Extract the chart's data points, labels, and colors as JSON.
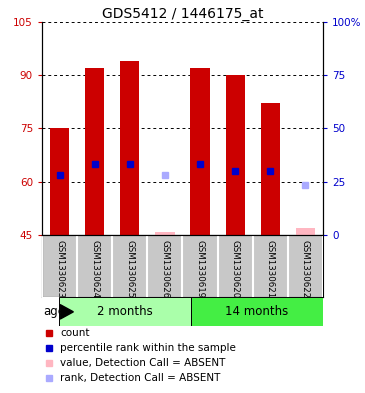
{
  "title": "GDS5412 / 1446175_at",
  "samples": [
    "GSM1330623",
    "GSM1330624",
    "GSM1330625",
    "GSM1330626",
    "GSM1330619",
    "GSM1330620",
    "GSM1330621",
    "GSM1330622"
  ],
  "groups": [
    {
      "label": "2 months",
      "indices": [
        0,
        1,
        2,
        3
      ],
      "color": "#AAFFAA"
    },
    {
      "label": "14 months",
      "indices": [
        4,
        5,
        6,
        7
      ],
      "color": "#44EE44"
    }
  ],
  "absent": [
    3,
    7
  ],
  "bar_bottom": 45,
  "ylim_left": [
    45,
    105
  ],
  "ylim_right": [
    0,
    100
  ],
  "yticks_left": [
    45,
    60,
    75,
    90,
    105
  ],
  "yticks_right": [
    0,
    25,
    50,
    75,
    100
  ],
  "ytick_labels_right": [
    "0",
    "25",
    "50",
    "75",
    "100%"
  ],
  "count_values": [
    75,
    92,
    94,
    46,
    92,
    90,
    82,
    47
  ],
  "rank_values": [
    62,
    65,
    65,
    62,
    65,
    63,
    63,
    59
  ],
  "bar_color_present": "#CC0000",
  "bar_color_absent": "#FFB6C1",
  "rank_color_present": "#0000CC",
  "rank_color_absent": "#AAAAFF",
  "bar_width": 0.55,
  "rank_marker_size": 4,
  "background_sample": "#C8C8C8",
  "left_tick_color": "#CC0000",
  "right_tick_color": "#0000CC",
  "legend_items": [
    {
      "color": "#CC0000",
      "label": "count"
    },
    {
      "color": "#0000CC",
      "label": "percentile rank within the sample"
    },
    {
      "color": "#FFB6C1",
      "label": "value, Detection Call = ABSENT"
    },
    {
      "color": "#AAAAFF",
      "label": "rank, Detection Call = ABSENT"
    }
  ]
}
